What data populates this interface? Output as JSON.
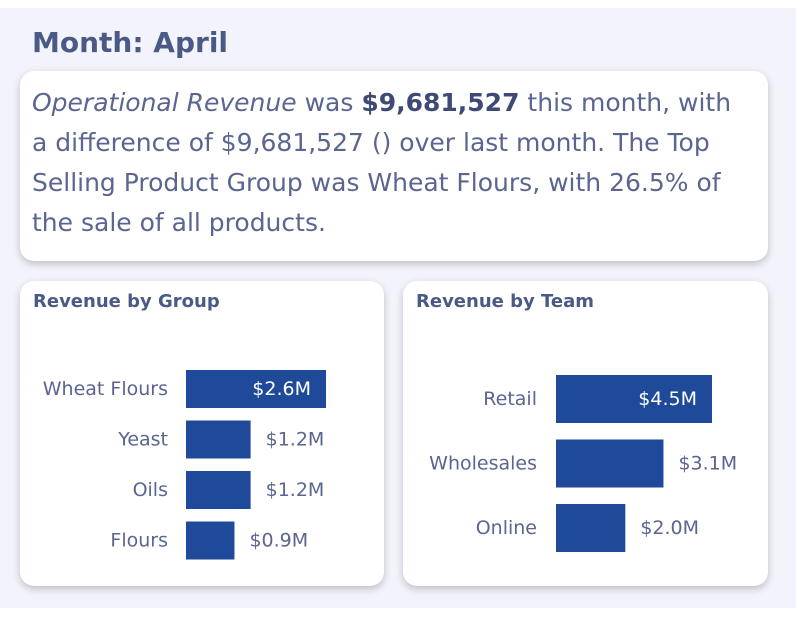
{
  "header": {
    "title": "Month: April"
  },
  "summary": {
    "metric_name": "Operational Revenue",
    "text_1": " was ",
    "revenue": "$9,681,527",
    "text_2": " this month, with a difference of $9,681,527 () over last month. The Top Selling Product Group was Wheat Flours, with 26.5% of the sale of all products."
  },
  "colors": {
    "bar": "#1f4a99",
    "text": "#5a6590",
    "title": "#4a5a85"
  },
  "chart_data": [
    {
      "type": "bar",
      "orientation": "horizontal",
      "title": "Revenue by Group",
      "categories": [
        "Wheat Flours",
        "Yeast",
        "Oils",
        "Flours"
      ],
      "values": [
        2.6,
        1.2,
        1.2,
        0.9
      ],
      "labels": [
        "$2.6M",
        "$1.2M",
        "$1.2M",
        "$0.9M"
      ],
      "unit": "$M",
      "xlim": [
        0,
        2.6
      ],
      "grid": false
    },
    {
      "type": "bar",
      "orientation": "horizontal",
      "title": "Revenue by Team",
      "categories": [
        "Retail",
        "Wholesales",
        "Online"
      ],
      "values": [
        4.5,
        3.1,
        2.0
      ],
      "labels": [
        "$4.5M",
        "$3.1M",
        "$2.0M"
      ],
      "unit": "$M",
      "xlim": [
        0,
        4.5
      ],
      "grid": false
    }
  ]
}
